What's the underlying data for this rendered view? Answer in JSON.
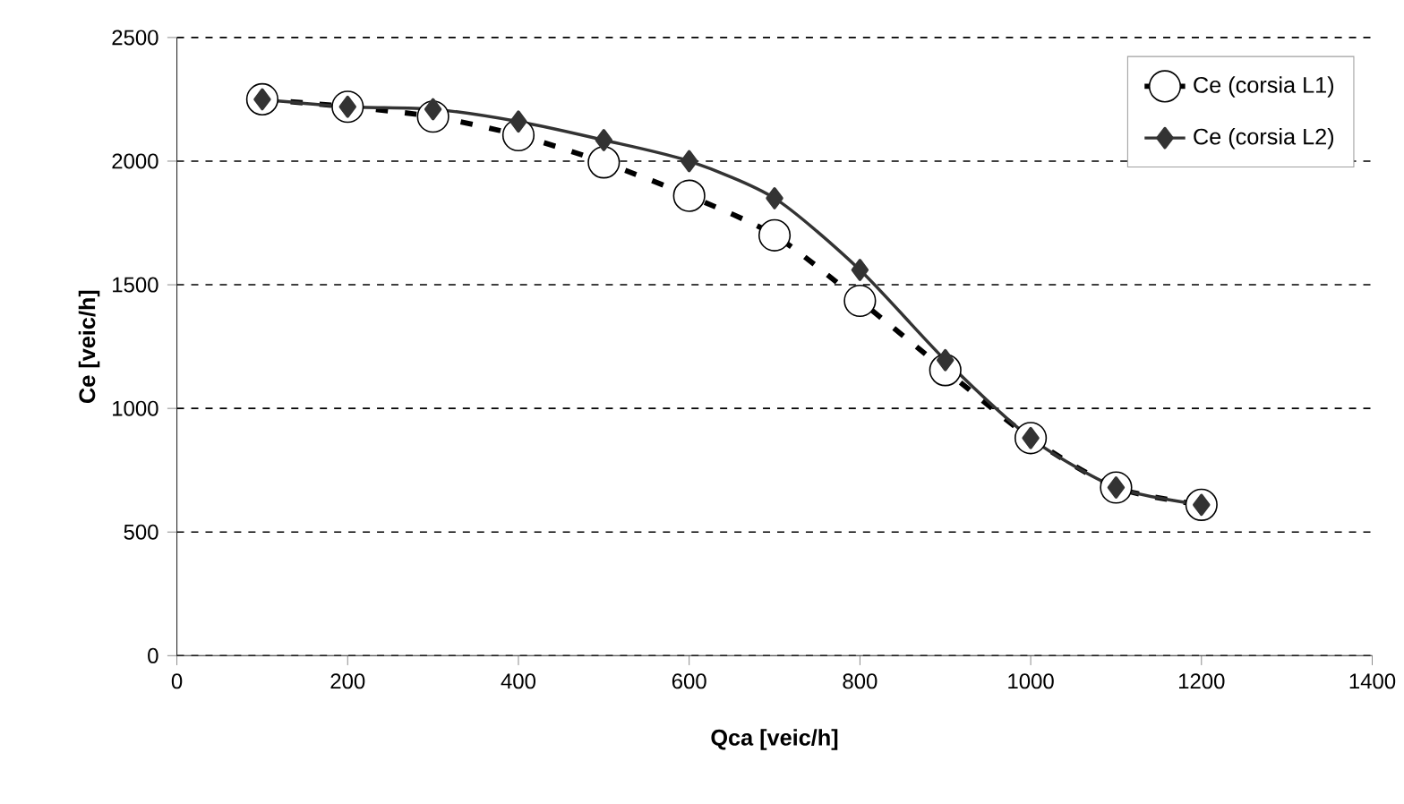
{
  "chart_data": {
    "type": "line",
    "xlabel": "Qca [veic/h]",
    "ylabel": "Ce [veic/h]",
    "x": [
      100,
      200,
      300,
      400,
      500,
      600,
      700,
      800,
      900,
      1000,
      1100,
      1200
    ],
    "series": [
      {
        "name": "Ce (corsia L1)",
        "color": "#000000",
        "marker": "circle",
        "line_style": "dashed",
        "values": [
          2250,
          2220,
          2180,
          2105,
          1995,
          1860,
          1700,
          1435,
          1155,
          880,
          680,
          610
        ]
      },
      {
        "name": "Ce (corsia L2)",
        "color": "#333333",
        "marker": "diamond",
        "line_style": "solid",
        "values": [
          2250,
          2220,
          2210,
          2160,
          2085,
          2000,
          1850,
          1560,
          1195,
          880,
          680,
          610
        ]
      }
    ],
    "xlim": [
      0,
      1400
    ],
    "ylim": [
      0,
      2500
    ],
    "xticks": [
      0,
      200,
      400,
      600,
      800,
      1000,
      1200,
      1400
    ],
    "yticks": [
      0,
      500,
      1000,
      1500,
      2000,
      2500
    ],
    "grid": "y",
    "legend": "top right"
  }
}
